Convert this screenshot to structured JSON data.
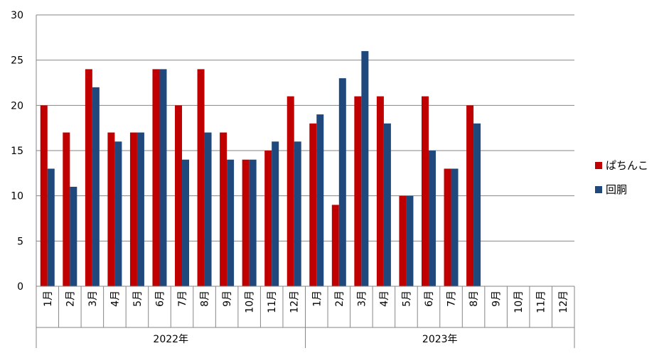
{
  "chart_data": {
    "type": "bar",
    "title": "",
    "xlabel": "",
    "ylabel": "",
    "ylim": [
      0,
      30
    ],
    "ytick_step": 5,
    "grid": true,
    "legend_position": "right",
    "groups": [
      {
        "label": "2022年",
        "categories": [
          "1月",
          "2月",
          "3月",
          "4月",
          "5月",
          "6月",
          "7月",
          "8月",
          "9月",
          "10月",
          "11月",
          "12月"
        ]
      },
      {
        "label": "2023年",
        "categories": [
          "1月",
          "2月",
          "3月",
          "4月",
          "5月",
          "6月",
          "7月",
          "8月",
          "9月",
          "10月",
          "11月",
          "12月"
        ]
      }
    ],
    "series": [
      {
        "name": "ぱちんこ",
        "color": "#C00000",
        "values": [
          20,
          17,
          24,
          17,
          17,
          24,
          20,
          24,
          17,
          14,
          15,
          21,
          18,
          9,
          21,
          21,
          10,
          21,
          13,
          20,
          null,
          null,
          null,
          null
        ]
      },
      {
        "name": "回胴",
        "color": "#1F497D",
        "values": [
          13,
          11,
          22,
          16,
          17,
          24,
          14,
          17,
          14,
          14,
          16,
          16,
          19,
          23,
          26,
          18,
          10,
          15,
          13,
          18,
          null,
          null,
          null,
          null
        ]
      }
    ]
  }
}
